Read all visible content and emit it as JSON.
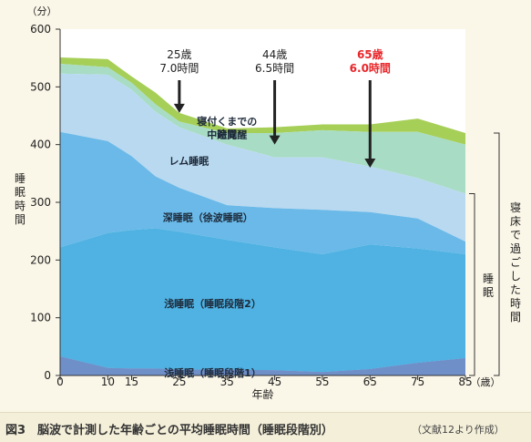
{
  "chart_data": {
    "type": "area",
    "title": "",
    "caption": {
      "title": "図3　脳波で計測した年齢ごとの平均睡眠時間（睡眠段階別）",
      "source": "（文献12より作成）"
    },
    "y_unit": "（分）",
    "x_unit": "（歳）",
    "xlabel": "年齢",
    "ylabel": "睡眠時間",
    "x": [
      0,
      10,
      15,
      20,
      25,
      35,
      45,
      55,
      65,
      75,
      85
    ],
    "x_ticks": [
      "0",
      "10",
      "15",
      "25",
      "35",
      "45",
      "55",
      "65",
      "75",
      "85"
    ],
    "ylim": [
      0,
      600
    ],
    "y_ticks": [
      "0",
      "100",
      "200",
      "300",
      "400",
      "500",
      "600"
    ],
    "series": [
      {
        "name": "浅睡眠（睡眠段階1）",
        "color": "#6f8fc9",
        "cumulative": [
          33,
          13,
          12,
          12,
          10,
          10,
          9,
          6,
          11,
          22,
          30
        ]
      },
      {
        "name": "浅睡眠（睡眠段階2）",
        "color": "#4fb2e2",
        "cumulative": [
          222,
          247,
          252,
          255,
          249,
          235,
          222,
          210,
          227,
          220,
          210
        ]
      },
      {
        "name": "深睡眠（徐波睡眠）",
        "color": "#6ab9e8",
        "cumulative": [
          422,
          406,
          380,
          345,
          325,
          295,
          290,
          287,
          283,
          272,
          232
        ]
      },
      {
        "name": "レム睡眠",
        "color": "#b9d9f0",
        "cumulative": [
          523,
          521,
          495,
          457,
          430,
          400,
          378,
          378,
          362,
          342,
          315
        ]
      },
      {
        "name": "中途覚醒",
        "color": "#a8dcc4",
        "cumulative": [
          540,
          534,
          507,
          470,
          440,
          420,
          420,
          425,
          422,
          422,
          400
        ]
      },
      {
        "name": "寝付くまでの時間",
        "color": "#a6cf57",
        "cumulative": [
          551,
          548,
          518,
          490,
          455,
          428,
          430,
          435,
          435,
          445,
          420
        ]
      }
    ],
    "annotations": [
      {
        "age": "25歳",
        "time": "7.0時間",
        "x": 25,
        "arrow_y": 455,
        "color": "#222222"
      },
      {
        "age": "44歳",
        "time": "6.5時間",
        "x": 45,
        "arrow_y": 400,
        "color": "#222222"
      },
      {
        "age": "65歳",
        "time": "6.0時間",
        "x": 65,
        "arrow_y": 360,
        "color": "#e8262a"
      }
    ],
    "brackets": {
      "sleep": "睡眠",
      "in_bed": "寝床で過ごした時間"
    }
  }
}
